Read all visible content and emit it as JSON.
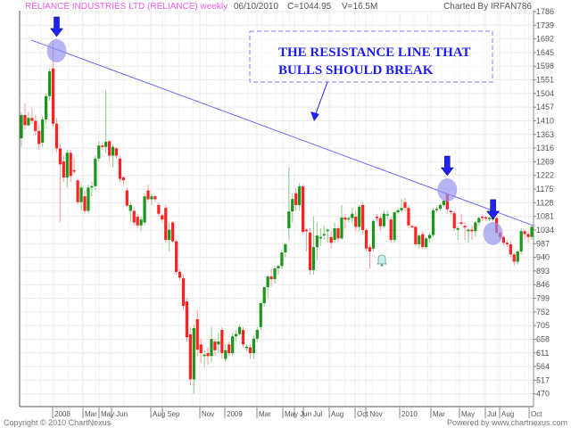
{
  "header": {
    "title": "RELIANCE INDUSTRIES LTD (RELIANCE) weekly",
    "date": "06/10/2010",
    "close": "C=1044.95",
    "volume": "V=16.5M",
    "charted_by": "Charted By IRFAN786"
  },
  "footer": {
    "copyright": "Copyright © 2010 ChartNexus",
    "powered_by": "Powered by www.chartnexus.com"
  },
  "annotation": {
    "line1": "THE RESISTANCE LINE THAT",
    "line2": "BULLS SHOULD BREAK"
  },
  "colors": {
    "up": "#1a961a",
    "down": "#ff2222",
    "up_wick": "#8cc98c",
    "down_wick": "#ff9a9a",
    "trendline": "#6a6aff",
    "title": "#f25cf2",
    "highlight": "#8f8ff0",
    "arrow": "#2222ee"
  },
  "chart_data": {
    "type": "candlestick",
    "title": "RELIANCE INDUSTRIES LTD (RELIANCE) weekly",
    "ylim": [
      470,
      1786
    ],
    "y_ticks": [
      1786,
      1739,
      1692,
      1645,
      1598,
      1551,
      1504,
      1457,
      1410,
      1363,
      1316,
      1269,
      1222,
      1175,
      1128,
      1081,
      1034,
      987,
      940,
      893,
      846,
      799,
      752,
      705,
      658,
      611,
      564,
      517,
      470
    ],
    "x_tick_labels": [
      "2008",
      "Mar",
      "May",
      "Jun",
      "Aug",
      "Sep",
      "Nov",
      "2009",
      "Mar",
      "May",
      "Jun",
      "Jul",
      "Aug",
      "Oct",
      "Nov",
      "2010",
      "Mar",
      "May",
      "Jul",
      "Aug",
      "Oct"
    ],
    "grid": true,
    "candles_ohlc": [
      [
        1350,
        1440,
        1320,
        1430
      ],
      [
        1430,
        1470,
        1380,
        1395
      ],
      [
        1395,
        1440,
        1390,
        1420
      ],
      [
        1420,
        1455,
        1400,
        1410
      ],
      [
        1410,
        1430,
        1360,
        1375
      ],
      [
        1375,
        1400,
        1310,
        1330
      ],
      [
        1335,
        1425,
        1320,
        1415
      ],
      [
        1415,
        1505,
        1400,
        1495
      ],
      [
        1495,
        1590,
        1480,
        1580
      ],
      [
        1590,
        1680,
        1390,
        1400
      ],
      [
        1400,
        1420,
        1300,
        1315
      ],
      [
        1315,
        1330,
        1060,
        1260
      ],
      [
        1270,
        1290,
        1200,
        1215
      ],
      [
        1215,
        1310,
        1180,
        1300
      ],
      [
        1300,
        1310,
        1200,
        1220
      ],
      [
        1240,
        1280,
        1230,
        1235
      ],
      [
        1205,
        1210,
        1120,
        1130
      ],
      [
        1130,
        1190,
        1100,
        1180
      ],
      [
        1150,
        1170,
        1090,
        1100
      ],
      [
        1100,
        1190,
        1090,
        1180
      ],
      [
        1180,
        1200,
        1150,
        1185
      ],
      [
        1185,
        1290,
        1170,
        1280
      ],
      [
        1280,
        1340,
        1270,
        1325
      ],
      [
        1325,
        1335,
        1310,
        1320
      ],
      [
        1320,
        1515,
        1300,
        1338
      ],
      [
        1340,
        1345,
        1270,
        1290
      ],
      [
        1290,
        1330,
        1250,
        1320
      ],
      [
        1315,
        1320,
        1280,
        1290
      ],
      [
        1280,
        1290,
        1200,
        1210
      ],
      [
        1215,
        1220,
        1190,
        1205
      ],
      [
        1170,
        1180,
        1110,
        1118
      ],
      [
        1100,
        1130,
        1060,
        1120
      ],
      [
        1100,
        1110,
        1050,
        1060
      ],
      [
        1080,
        1090,
        1040,
        1050
      ],
      [
        1050,
        1080,
        1030,
        1070
      ],
      [
        1060,
        1160,
        1050,
        1150
      ],
      [
        1170,
        1190,
        1130,
        1140
      ],
      [
        1140,
        1160,
        1120,
        1150
      ],
      [
        1150,
        1155,
        1130,
        1140
      ],
      [
        1120,
        1130,
        1080,
        1090
      ],
      [
        1085,
        1090,
        1060,
        1070
      ],
      [
        1110,
        1120,
        990,
        1000
      ],
      [
        1000,
        1060,
        960,
        1035
      ],
      [
        1060,
        1065,
        990,
        995
      ],
      [
        995,
        1000,
        880,
        890
      ],
      [
        890,
        900,
        860,
        870
      ],
      [
        868,
        880,
        760,
        773
      ],
      [
        788,
        800,
        650,
        665
      ],
      [
        675,
        700,
        500,
        520
      ],
      [
        520,
        710,
        470,
        696
      ],
      [
        727,
        760,
        600,
        622
      ],
      [
        640,
        660,
        580,
        610
      ],
      [
        600,
        620,
        560,
        605
      ],
      [
        610,
        630,
        570,
        600
      ],
      [
        600,
        700,
        580,
        659
      ],
      [
        650,
        660,
        600,
        620
      ],
      [
        640,
        680,
        610,
        650
      ],
      [
        690,
        700,
        590,
        610
      ],
      [
        590,
        640,
        580,
        620
      ],
      [
        640,
        650,
        600,
        610
      ],
      [
        610,
        680,
        600,
        668
      ],
      [
        668,
        690,
        650,
        676
      ],
      [
        676,
        710,
        670,
        700
      ],
      [
        690,
        700,
        630,
        640
      ],
      [
        630,
        640,
        615,
        632
      ],
      [
        630,
        640,
        590,
        610
      ],
      [
        610,
        670,
        590,
        660
      ],
      [
        660,
        700,
        650,
        690
      ],
      [
        700,
        790,
        690,
        782
      ],
      [
        782,
        840,
        770,
        837
      ],
      [
        837,
        880,
        800,
        874
      ],
      [
        874,
        900,
        840,
        865
      ],
      [
        865,
        910,
        850,
        902
      ],
      [
        902,
        915,
        880,
        910
      ],
      [
        910,
        965,
        900,
        957
      ],
      [
        957,
        990,
        940,
        985
      ],
      [
        1040,
        1250,
        1000,
        1098
      ],
      [
        1098,
        1160,
        1060,
        1141
      ],
      [
        1160,
        1180,
        1100,
        1120
      ],
      [
        1120,
        1195,
        1100,
        1184
      ],
      [
        1184,
        1190,
        1020,
        1028
      ],
      [
        1035,
        1040,
        960,
        1030
      ],
      [
        1025,
        1040,
        880,
        896
      ],
      [
        896,
        1080,
        880,
        975
      ],
      [
        975,
        1060,
        930,
        1015
      ],
      [
        1005,
        1040,
        980,
        1010
      ],
      [
        1015,
        1050,
        1000,
        1020
      ],
      [
        1030,
        1040,
        990,
        1035
      ],
      [
        1010,
        1030,
        970,
        990
      ],
      [
        1000,
        1060,
        990,
        1040
      ],
      [
        1040,
        1050,
        990,
        1005
      ],
      [
        1005,
        1120,
        1000,
        1077
      ],
      [
        1077,
        1090,
        1040,
        1070
      ],
      [
        1070,
        1080,
        1060,
        1075
      ],
      [
        1075,
        1110,
        1060,
        1090
      ],
      [
        1080,
        1100,
        1030,
        1045
      ],
      [
        1045,
        1120,
        1030,
        1114
      ],
      [
        1120,
        1130,
        1020,
        1034
      ],
      [
        1034,
        1040,
        960,
        970
      ],
      [
        975,
        985,
        900,
        960
      ],
      [
        970,
        1070,
        960,
        1065
      ],
      [
        1080,
        1090,
        1060,
        1075
      ],
      [
        1075,
        1085,
        1030,
        1047
      ],
      [
        1047,
        1100,
        1040,
        1090
      ],
      [
        1085,
        1100,
        1070,
        1088
      ],
      [
        1070,
        1080,
        990,
        1000
      ],
      [
        1000,
        1100,
        990,
        1095
      ],
      [
        1095,
        1110,
        1090,
        1102
      ],
      [
        1102,
        1140,
        1095,
        1110
      ],
      [
        1130,
        1145,
        1100,
        1110
      ],
      [
        1110,
        1120,
        1040,
        1050
      ],
      [
        1048,
        1050,
        1040,
        1045
      ],
      [
        1045,
        1050,
        980,
        985
      ],
      [
        985,
        1020,
        970,
        1015
      ],
      [
        1020,
        1030,
        970,
        975
      ],
      [
        975,
        1010,
        970,
        1005
      ],
      [
        1005,
        1025,
        990,
        1017
      ],
      [
        1017,
        1110,
        1010,
        1102
      ],
      [
        1102,
        1115,
        1095,
        1107
      ],
      [
        1107,
        1125,
        1100,
        1120
      ],
      [
        1120,
        1140,
        1115,
        1135
      ],
      [
        1160,
        1165,
        1090,
        1105
      ],
      [
        1100,
        1105,
        1085,
        1098
      ],
      [
        1092,
        1100,
        1030,
        1040
      ],
      [
        1035,
        1045,
        1000,
        1040
      ],
      [
        1060,
        1090,
        1050,
        1058
      ],
      [
        1048,
        1060,
        1000,
        1043
      ],
      [
        1030,
        1040,
        990,
        1035
      ],
      [
        1035,
        1050,
        1000,
        1030
      ],
      [
        1030,
        1065,
        1010,
        1060
      ],
      [
        1060,
        1080,
        1050,
        1075
      ],
      [
        1080,
        1085,
        1065,
        1078
      ],
      [
        1078,
        1082,
        1065,
        1074
      ],
      [
        1074,
        1080,
        1065,
        1076
      ],
      [
        1072,
        1078,
        1065,
        1075
      ],
      [
        1075,
        1080,
        1020,
        1025
      ],
      [
        1025,
        1030,
        1000,
        1010
      ],
      [
        1010,
        1015,
        980,
        990
      ],
      [
        990,
        1000,
        975,
        985
      ],
      [
        985,
        995,
        940,
        950
      ],
      [
        950,
        955,
        910,
        925
      ],
      [
        925,
        965,
        915,
        960
      ],
      [
        960,
        1040,
        950,
        1030
      ],
      [
        1030,
        1035,
        1000,
        1020
      ],
      [
        1020,
        1030,
        990,
        1010
      ],
      [
        1010,
        1050,
        1000,
        1045
      ]
    ],
    "resistance_line": {
      "start_price": 1688,
      "end_price": 1049
    },
    "highlights": [
      {
        "candle": 9,
        "price": 1651
      },
      {
        "candle": 121,
        "price": 1172
      },
      {
        "candle": 134,
        "price": 1022
      }
    ]
  }
}
